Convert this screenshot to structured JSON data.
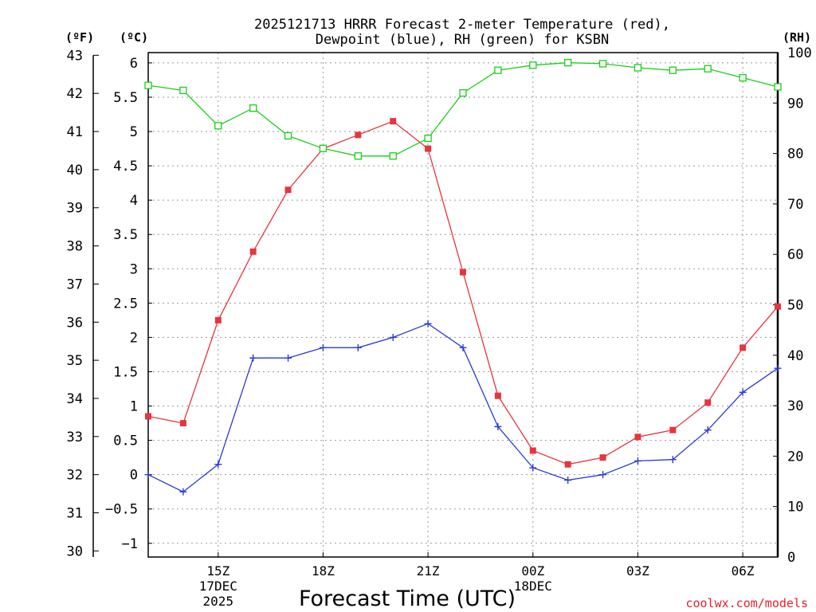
{
  "chart_data": {
    "type": "line",
    "title": [
      "2025121713 HRRR Forecast 2-meter Temperature (red),",
      "Dewpoint (blue), RH (green) for KSBN"
    ],
    "units": {
      "fahrenheit": "(ºF)",
      "celsius": "(ºC)",
      "rh": "(RH)"
    },
    "xlabel": "Forecast Time (UTC)",
    "credit": "coolwx.com/models",
    "x_hours": [
      0,
      1,
      2,
      3,
      4,
      5,
      6,
      7,
      8,
      9,
      10,
      11,
      12,
      13,
      14,
      15,
      16,
      17,
      18
    ],
    "xlim": [
      0,
      18
    ],
    "x_ticks": [
      {
        "hour": 2,
        "lines": [
          "15Z",
          "17DEC",
          "2025"
        ]
      },
      {
        "hour": 5,
        "lines": [
          "18Z"
        ]
      },
      {
        "hour": 8,
        "lines": [
          "21Z"
        ]
      },
      {
        "hour": 11,
        "lines": [
          "00Z",
          "18DEC"
        ]
      },
      {
        "hour": 14,
        "lines": [
          "03Z"
        ]
      },
      {
        "hour": 17,
        "lines": [
          "06Z"
        ]
      }
    ],
    "celsius_axis": {
      "lim": [
        -1.2,
        6.15
      ],
      "ticks": [
        -1,
        -0.5,
        0,
        0.5,
        1,
        1.5,
        2,
        2.5,
        3,
        3.5,
        4,
        4.5,
        5,
        5.5,
        6
      ]
    },
    "fahrenheit_axis": {
      "ticks": [
        30,
        31,
        32,
        33,
        34,
        35,
        36,
        37,
        38,
        39,
        40,
        41,
        42,
        43
      ]
    },
    "rh_axis": {
      "lim": [
        0,
        100
      ],
      "ticks": [
        0,
        10,
        20,
        30,
        40,
        50,
        60,
        70,
        80,
        90,
        100
      ]
    },
    "series": [
      {
        "name": "Temperature",
        "axis": "celsius",
        "color": "#e8343f",
        "marker": "filled-square",
        "values": [
          0.85,
          0.75,
          2.25,
          3.25,
          4.15,
          4.75,
          4.95,
          5.15,
          4.75,
          2.95,
          1.15,
          0.35,
          0.15,
          0.25,
          0.55,
          0.65,
          1.05,
          1.85,
          2.45
        ]
      },
      {
        "name": "Dewpoint",
        "axis": "celsius",
        "color": "#2a3ad8",
        "marker": "plus",
        "values": [
          0.0,
          -0.25,
          0.15,
          1.7,
          1.7,
          1.85,
          1.85,
          2.0,
          2.2,
          1.85,
          0.7,
          0.1,
          -0.08,
          0.0,
          0.2,
          0.22,
          0.65,
          1.2,
          1.55
        ]
      },
      {
        "name": "RH",
        "axis": "rh",
        "color": "#18d018",
        "marker": "open-square",
        "values": [
          93.5,
          92.5,
          85.5,
          89,
          83.5,
          81,
          79.5,
          79.5,
          83,
          92,
          96.5,
          97.5,
          98,
          97.8,
          97,
          96.5,
          96.8,
          95,
          93.2
        ]
      }
    ]
  }
}
